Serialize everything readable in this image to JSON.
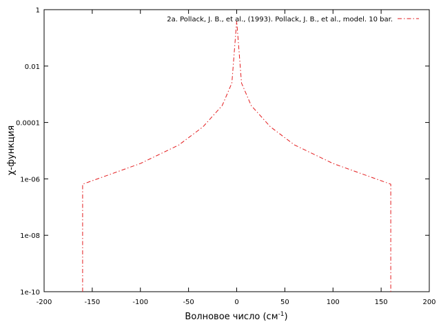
{
  "chart_data": {
    "type": "line",
    "xlabel": "Волновое число (см",
    "xlabel_sup": "-1",
    "xlabel_close": ")",
    "ylabel": "χ-функция",
    "xlim": [
      -200,
      200
    ],
    "ylim": [
      1e-10,
      1
    ],
    "y_scale": "log",
    "grid": false,
    "legend_position": "top-right",
    "x_ticks": [
      -200,
      -150,
      -100,
      -50,
      0,
      50,
      100,
      150,
      200
    ],
    "x_tick_labels": [
      "-200",
      "-150",
      "-100",
      "-50",
      "0",
      "50",
      "100",
      "150",
      "200"
    ],
    "y_ticks": [
      1e-10,
      1e-08,
      1e-06,
      0.0001,
      0.01,
      1
    ],
    "y_tick_labels": [
      "1e-10",
      "1e-08",
      "1e-06",
      "0.0001",
      "0.01",
      "1"
    ],
    "series": [
      {
        "name": "2a. Pollack, J. B., et al., (1993). Pollack, J. B., et al., model. 10 bar.",
        "color": "#e31a1c",
        "line_style": "dash-dot",
        "x": [
          -160,
          -160,
          -100,
          -60,
          -35,
          -15,
          -5,
          0,
          5,
          15,
          35,
          60,
          100,
          160,
          160
        ],
        "y": [
          1e-10,
          6.5e-07,
          3.5e-06,
          1.6e-05,
          7e-05,
          0.0004,
          0.0025,
          0.4,
          0.0025,
          0.0004,
          7e-05,
          1.6e-05,
          3.5e-06,
          6.5e-07,
          1e-10
        ]
      }
    ]
  }
}
